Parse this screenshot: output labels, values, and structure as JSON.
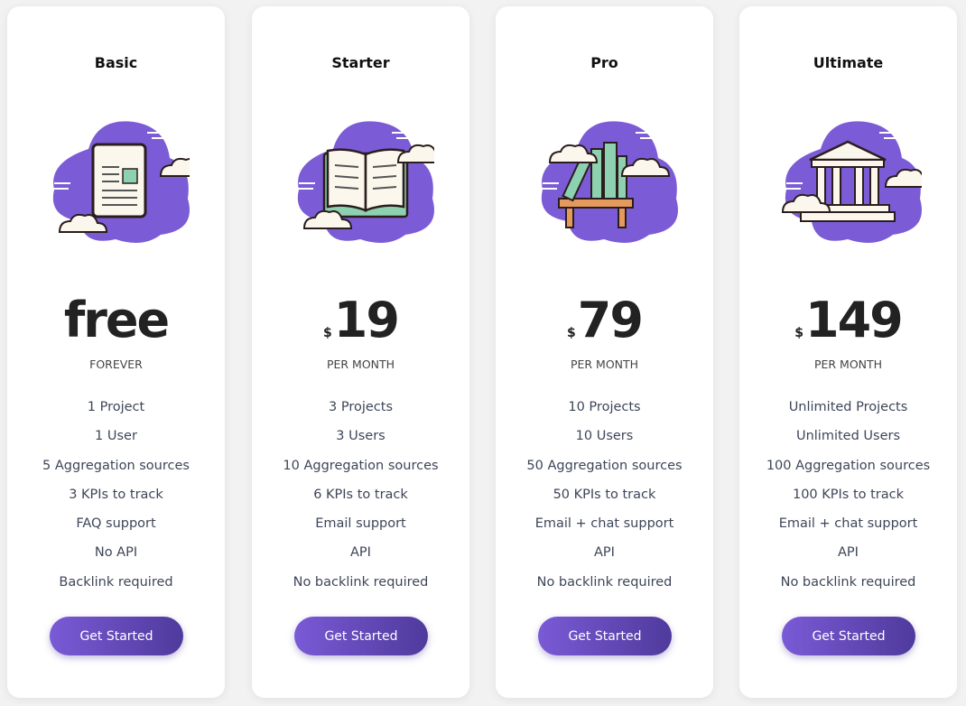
{
  "colors": {
    "accent": "#7b5cd6",
    "button_end": "#4f3a9c",
    "background": "#f2f2f3"
  },
  "plans": [
    {
      "name": "Basic",
      "icon": "document-icon",
      "currency": "",
      "price": "free",
      "period": "FOREVER",
      "features": [
        "1 Project",
        "1 User",
        "5 Aggregation sources",
        "3 KPIs to track",
        "FAQ support",
        "No API",
        "Backlink required"
      ],
      "cta": "Get Started"
    },
    {
      "name": "Starter",
      "icon": "book-icon",
      "currency": "$",
      "price": "19",
      "period": "PER MONTH",
      "features": [
        "3 Projects",
        "3 Users",
        "10 Aggregation sources",
        "6 KPIs to track",
        "Email support",
        "API",
        "No backlink required"
      ],
      "cta": "Get Started"
    },
    {
      "name": "Pro",
      "icon": "bookshelf-icon",
      "currency": "$",
      "price": "79",
      "period": "PER MONTH",
      "features": [
        "10 Projects",
        "10 Users",
        "50 Aggregation sources",
        "50 KPIs to track",
        "Email + chat support",
        "API",
        "No backlink required"
      ],
      "cta": "Get Started"
    },
    {
      "name": "Ultimate",
      "icon": "building-icon",
      "currency": "$",
      "price": "149",
      "period": "PER MONTH",
      "features": [
        "Unlimited Projects",
        "Unlimited Users",
        "100 Aggregation sources",
        "100 KPIs to track",
        "Email + chat support",
        "API",
        "No backlink required"
      ],
      "cta": "Get Started"
    }
  ]
}
